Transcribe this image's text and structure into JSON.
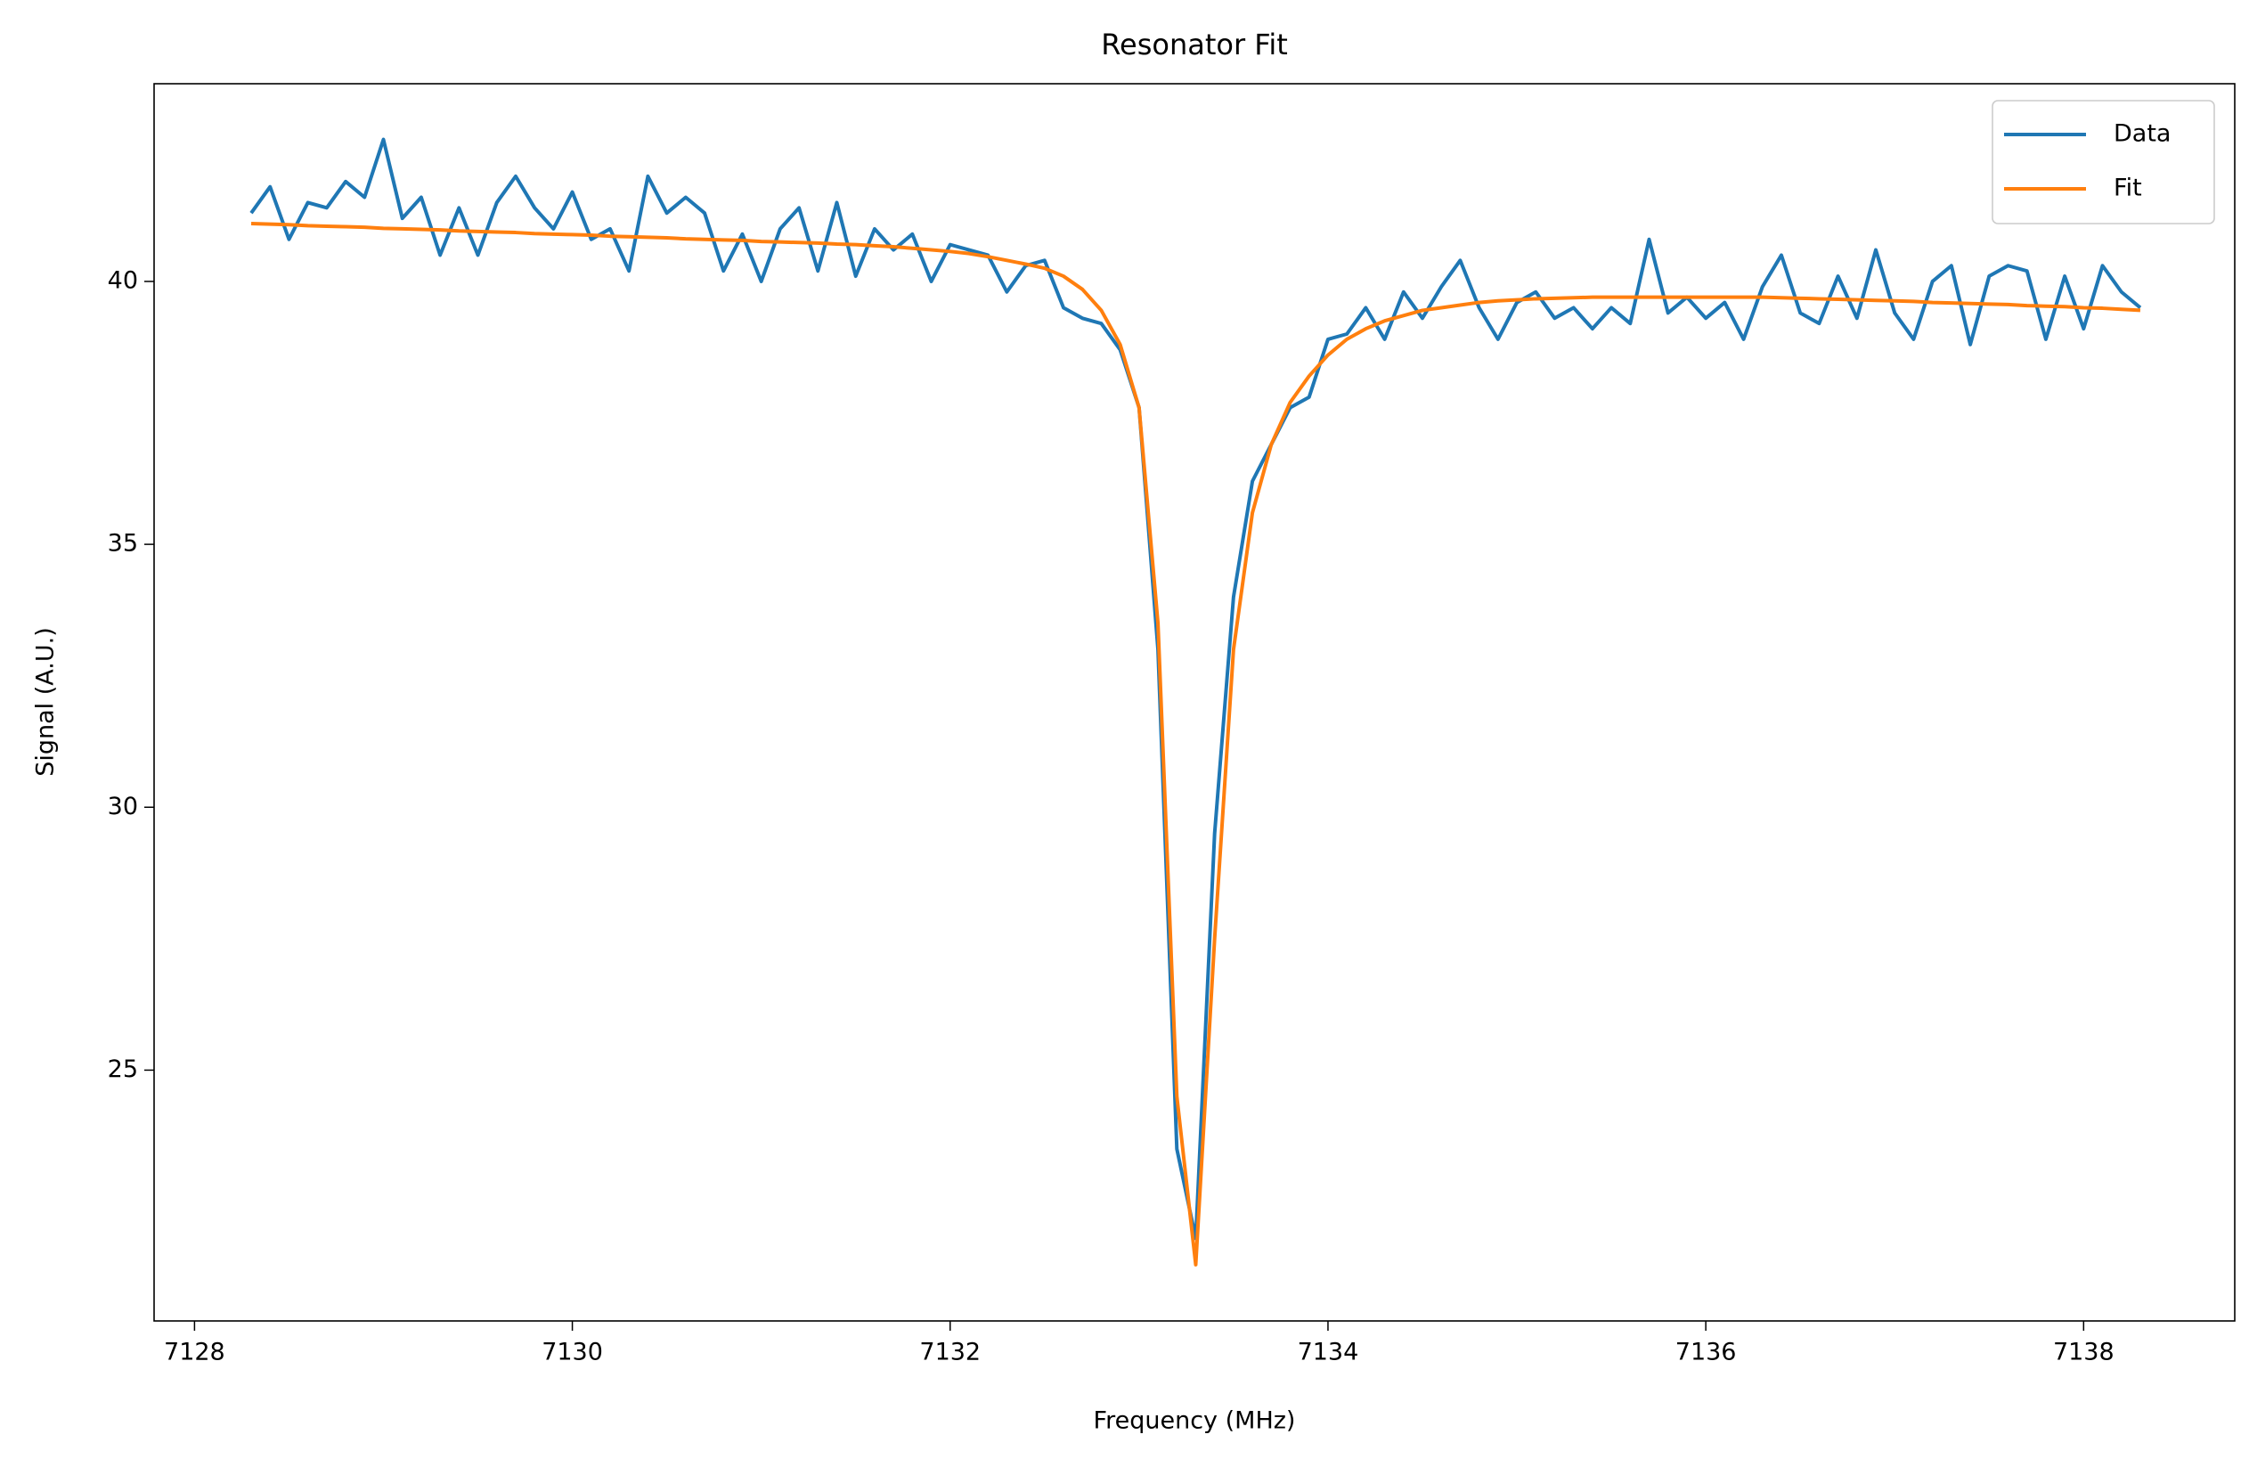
{
  "chart_data": {
    "type": "line",
    "title": "Resonator Fit",
    "x_label": "Frequency (MHz)",
    "y_label": "Signal (A.U.)",
    "x": [
      7128.3,
      7128.4,
      7128.5,
      7128.6,
      7128.7,
      7128.8,
      7128.9,
      7129.0,
      7129.1,
      7129.2,
      7129.3,
      7129.4,
      7129.5,
      7129.6,
      7129.7,
      7129.8,
      7129.9,
      7130.0,
      7130.1,
      7130.2,
      7130.3,
      7130.4,
      7130.5,
      7130.6,
      7130.7,
      7130.8,
      7130.9,
      7131.0,
      7131.1,
      7131.2,
      7131.3,
      7131.4,
      7131.5,
      7131.6,
      7131.7,
      7131.8,
      7131.9,
      7132.0,
      7132.1,
      7132.2,
      7132.3,
      7132.4,
      7132.5,
      7132.6,
      7132.7,
      7132.8,
      7132.9,
      7133.0,
      7133.1,
      7133.2,
      7133.3,
      7133.4,
      7133.5,
      7133.6,
      7133.7,
      7133.8,
      7133.9,
      7134.0,
      7134.1,
      7134.2,
      7134.3,
      7134.4,
      7134.5,
      7134.6,
      7134.7,
      7134.8,
      7134.9,
      7135.0,
      7135.1,
      7135.2,
      7135.3,
      7135.4,
      7135.5,
      7135.6,
      7135.7,
      7135.8,
      7135.9,
      7136.0,
      7136.1,
      7136.2,
      7136.3,
      7136.4,
      7136.5,
      7136.6,
      7136.7,
      7136.8,
      7136.9,
      7137.0,
      7137.1,
      7137.2,
      7137.3,
      7137.4,
      7137.5,
      7137.6,
      7137.7,
      7137.8,
      7137.9,
      7138.0,
      7138.1,
      7138.2,
      7138.3
    ],
    "series": [
      {
        "name": "Data",
        "color": "#1f77b4",
        "values": [
          41.3,
          41.8,
          40.8,
          41.5,
          41.4,
          41.9,
          41.6,
          42.7,
          41.2,
          41.6,
          40.5,
          41.4,
          40.5,
          41.5,
          42.0,
          41.4,
          41.0,
          41.7,
          40.8,
          41.0,
          40.2,
          42.0,
          41.3,
          41.6,
          41.3,
          40.2,
          40.9,
          40.0,
          41.0,
          41.4,
          40.2,
          41.5,
          40.1,
          41.0,
          40.6,
          40.9,
          40.0,
          40.7,
          40.6,
          40.5,
          39.8,
          40.3,
          40.4,
          39.5,
          39.3,
          39.2,
          38.7,
          37.6,
          33.0,
          23.5,
          21.8,
          29.5,
          34.0,
          36.2,
          36.9,
          37.6,
          37.8,
          38.9,
          39.0,
          39.5,
          38.9,
          39.8,
          39.3,
          39.9,
          40.4,
          39.5,
          38.9,
          39.6,
          39.8,
          39.3,
          39.5,
          39.1,
          39.5,
          39.2,
          40.8,
          39.4,
          39.7,
          39.3,
          39.6,
          38.9,
          39.9,
          40.5,
          39.4,
          39.2,
          40.1,
          39.3,
          40.6,
          39.4,
          38.9,
          40.0,
          40.3,
          38.8,
          40.1,
          40.3,
          40.2,
          38.9,
          40.1,
          39.1,
          40.3,
          39.8,
          39.5
        ]
      },
      {
        "name": "Fit",
        "color": "#ff7f0e",
        "values": [
          41.1,
          41.09,
          41.08,
          41.06,
          41.05,
          41.04,
          41.03,
          41.01,
          41.0,
          40.99,
          40.98,
          40.96,
          40.95,
          40.94,
          40.93,
          40.91,
          40.9,
          40.89,
          40.88,
          40.86,
          40.85,
          40.84,
          40.83,
          40.81,
          40.8,
          40.79,
          40.78,
          40.76,
          40.75,
          40.74,
          40.73,
          40.71,
          40.7,
          40.68,
          40.66,
          40.63,
          40.6,
          40.57,
          40.53,
          40.47,
          40.4,
          40.33,
          40.25,
          40.1,
          39.85,
          39.45,
          38.8,
          37.6,
          33.5,
          24.5,
          21.3,
          27.5,
          33.0,
          35.6,
          36.9,
          37.7,
          38.2,
          38.6,
          38.9,
          39.1,
          39.25,
          39.35,
          39.45,
          39.5,
          39.55,
          39.6,
          39.63,
          39.65,
          39.67,
          39.68,
          39.69,
          39.7,
          39.7,
          39.7,
          39.7,
          39.7,
          39.7,
          39.7,
          39.7,
          39.7,
          39.7,
          39.69,
          39.68,
          39.67,
          39.66,
          39.65,
          39.64,
          39.63,
          39.62,
          39.6,
          39.59,
          39.58,
          39.57,
          39.56,
          39.54,
          39.53,
          39.52,
          39.5,
          39.49,
          39.47,
          39.45
        ]
      }
    ],
    "xlim": [
      7127.786,
      7138.8
    ],
    "ylim": [
      20.23,
      43.76
    ],
    "xticks": [
      7128,
      7130,
      7132,
      7134,
      7136,
      7138
    ],
    "yticks": [
      25,
      30,
      35,
      40
    ],
    "grid": false,
    "legend": "upper right"
  }
}
